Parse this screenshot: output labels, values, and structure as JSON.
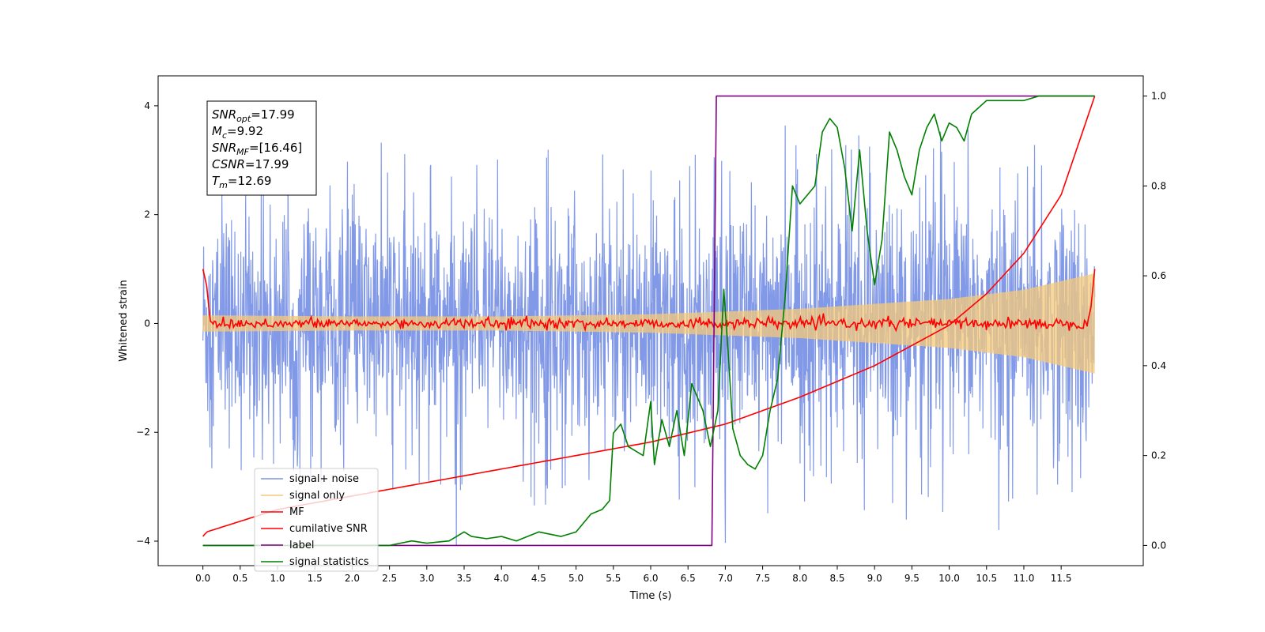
{
  "chart_data": {
    "type": "line",
    "xlabel": "Time (s)",
    "ylabel": "Whitened strain",
    "xlim": [
      -0.6,
      12.6
    ],
    "ylim_left": [
      -4.45,
      4.55
    ],
    "ylim_right": [
      -0.045,
      1.045
    ],
    "x_ticks": [
      0.0,
      0.5,
      1.0,
      1.5,
      2.0,
      2.5,
      3.0,
      3.5,
      4.0,
      4.5,
      5.0,
      5.5,
      6.0,
      6.5,
      7.0,
      7.5,
      8.0,
      8.5,
      9.0,
      9.5,
      10.0,
      10.5,
      11.0,
      11.5
    ],
    "x_tick_labels": [
      "0.0",
      "0.5",
      "1.0",
      "1.5",
      "2.0",
      "2.5",
      "3.0",
      "3.5",
      "4.0",
      "4.5",
      "5.0",
      "5.5",
      "6.0",
      "6.5",
      "7.0",
      "7.5",
      "8.0",
      "8.5",
      "9.0",
      "9.5",
      "10.0",
      "10.5",
      "11.0",
      "11.5"
    ],
    "y_left_ticks": [
      -4,
      -2,
      0,
      2,
      4
    ],
    "y_left_tick_labels": [
      "−4",
      "−2",
      "0",
      "2",
      "4"
    ],
    "y_right_ticks": [
      0.0,
      0.2,
      0.4,
      0.6,
      0.8,
      1.0
    ],
    "y_right_tick_labels": [
      "0.0",
      "0.2",
      "0.4",
      "0.6",
      "0.8",
      "1.0"
    ],
    "grid": false,
    "legend_position": "lower-left",
    "annotation": {
      "lines": [
        {
          "base": "SNR",
          "sub": "opt",
          "value": "=17.99"
        },
        {
          "base": "M",
          "sub": "c",
          "value": "=9.92"
        },
        {
          "base": "SNR",
          "sub": "MF",
          "value": "=[16.46]"
        },
        {
          "base": "CSNR",
          "sub": "",
          "value": "=17.99"
        },
        {
          "base": "T",
          "sub": "m",
          "value": "=12.69"
        }
      ]
    },
    "series": [
      {
        "name": "signal+ noise",
        "color": "#7b94e6",
        "axis": "left",
        "render": "band",
        "x_range": [
          0.0,
          11.95
        ],
        "amplitude_envelope": {
          "t": [
            0,
            2,
            4,
            6,
            8,
            10,
            11.95
          ],
          "typical": [
            1.3,
            1.3,
            1.3,
            1.35,
            1.4,
            1.45,
            1.5
          ],
          "peak": [
            2.6,
            3.0,
            3.4,
            3.2,
            3.6,
            3.7,
            3.3
          ]
        }
      },
      {
        "name": "signal only",
        "color": "#f5c97a",
        "axis": "left",
        "render": "chirp",
        "x_range": [
          0.0,
          11.95
        ],
        "envelope": {
          "t": [
            0,
            2,
            4,
            6,
            8,
            10,
            11,
            11.95
          ],
          "amp": [
            0.15,
            0.13,
            0.13,
            0.17,
            0.27,
            0.45,
            0.62,
            0.92
          ]
        }
      },
      {
        "name": "MF",
        "color": "#ff0000",
        "axis": "left",
        "x": [
          0.0,
          0.05,
          0.1,
          0.2,
          0.5,
          1.0,
          2.0,
          3.0,
          4.0,
          5.0,
          6.0,
          7.0,
          8.0,
          9.0,
          10.0,
          11.0,
          11.85,
          11.9,
          11.95
        ],
        "y": [
          1.0,
          0.7,
          0.02,
          0.0,
          0.0,
          0.0,
          0.0,
          0.0,
          0.0,
          0.0,
          0.0,
          0.0,
          0.0,
          0.0,
          0.0,
          0.0,
          0.0,
          0.3,
          1.0
        ],
        "wiggle": 0.06
      },
      {
        "name": "cumilative SNR",
        "color": "#ff0000",
        "axis": "right",
        "x": [
          0.0,
          0.05,
          1.0,
          2.0,
          3.0,
          4.0,
          5.0,
          6.0,
          7.0,
          8.0,
          9.0,
          10.0,
          10.5,
          11.0,
          11.5,
          11.95
        ],
        "y": [
          0.02,
          0.03,
          0.08,
          0.11,
          0.14,
          0.17,
          0.2,
          0.23,
          0.27,
          0.33,
          0.4,
          0.49,
          0.56,
          0.65,
          0.78,
          1.0
        ]
      },
      {
        "name": "label",
        "color": "#800080",
        "axis": "right",
        "x": [
          0.0,
          6.82,
          6.88,
          11.95
        ],
        "y": [
          0.0,
          0.0,
          1.0,
          1.0
        ]
      },
      {
        "name": "signal statistics",
        "color": "#008000",
        "axis": "right",
        "x": [
          0.0,
          0.3,
          0.6,
          1.0,
          1.5,
          2.0,
          2.5,
          2.8,
          3.0,
          3.3,
          3.5,
          3.6,
          3.8,
          4.0,
          4.2,
          4.5,
          4.8,
          5.0,
          5.2,
          5.35,
          5.45,
          5.5,
          5.6,
          5.7,
          5.9,
          6.0,
          6.05,
          6.15,
          6.25,
          6.35,
          6.45,
          6.55,
          6.6,
          6.7,
          6.8,
          6.9,
          6.98,
          7.05,
          7.1,
          7.2,
          7.3,
          7.4,
          7.5,
          7.6,
          7.7,
          7.8,
          7.9,
          8.0,
          8.1,
          8.2,
          8.3,
          8.4,
          8.5,
          8.6,
          8.7,
          8.8,
          8.9,
          9.0,
          9.1,
          9.2,
          9.3,
          9.4,
          9.5,
          9.6,
          9.7,
          9.8,
          9.9,
          10.0,
          10.1,
          10.2,
          10.3,
          10.5,
          10.8,
          11.0,
          11.2,
          11.5,
          11.95
        ],
        "y": [
          0.0,
          0.0,
          0.0,
          0.0,
          0.0,
          0.0,
          0.0,
          0.01,
          0.005,
          0.01,
          0.03,
          0.02,
          0.015,
          0.02,
          0.01,
          0.03,
          0.02,
          0.03,
          0.07,
          0.08,
          0.1,
          0.25,
          0.27,
          0.22,
          0.2,
          0.32,
          0.18,
          0.28,
          0.22,
          0.3,
          0.2,
          0.36,
          0.34,
          0.3,
          0.22,
          0.3,
          0.57,
          0.4,
          0.26,
          0.2,
          0.18,
          0.17,
          0.2,
          0.3,
          0.37,
          0.55,
          0.8,
          0.76,
          0.78,
          0.8,
          0.92,
          0.95,
          0.93,
          0.84,
          0.7,
          0.88,
          0.7,
          0.58,
          0.68,
          0.92,
          0.88,
          0.82,
          0.78,
          0.88,
          0.93,
          0.96,
          0.9,
          0.94,
          0.93,
          0.9,
          0.96,
          0.99,
          0.99,
          0.99,
          1.0,
          1.0,
          1.0
        ]
      }
    ]
  }
}
